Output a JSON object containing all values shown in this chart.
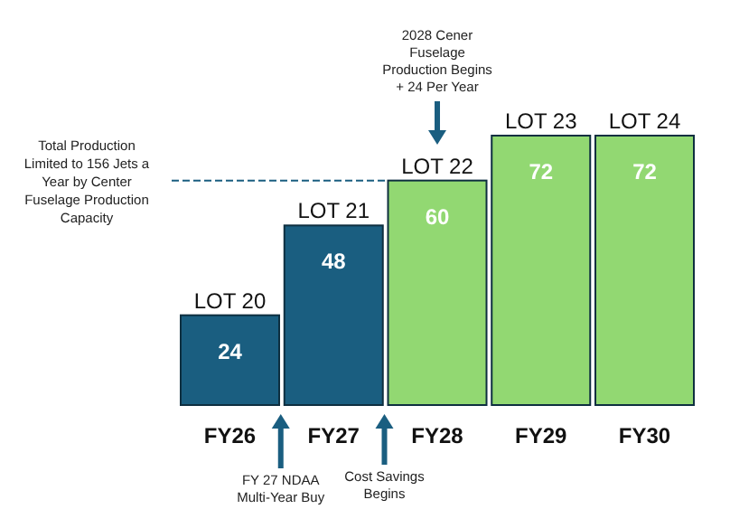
{
  "chart_data": {
    "type": "bar",
    "categories": [
      "FY26",
      "FY27",
      "FY28",
      "FY29",
      "FY30"
    ],
    "values": [
      24,
      48,
      60,
      72,
      72
    ],
    "colors": [
      "#1a5e80",
      "#1a5e80",
      "#92d872",
      "#92d872",
      "#92d872"
    ],
    "data_labels": true,
    "ref_lines": [
      {
        "axis": "y",
        "value": 60,
        "label": "Total Production Limited to 156 Jets a Year by Center Fuselage Production Capacity",
        "color": "#1a5e80",
        "line_style": "dashed"
      }
    ],
    "annotations": [
      {
        "text": "LOT 20",
        "x": "FY26",
        "y": 24
      },
      {
        "text": "LOT 21",
        "x": "FY27",
        "y": 48
      },
      {
        "text": "LOT 22",
        "x": "FY28",
        "y": 60
      },
      {
        "text": "LOT 23",
        "x": "FY29",
        "y": 72
      },
      {
        "text": "LOT 24",
        "x": "FY30",
        "y": 72
      },
      "2028 Cener Fuselage Production Begins + 24 Per Year",
      "FY 27 NDAA Multi-Year Buy",
      "Cost Savings Begins"
    ]
  }
}
